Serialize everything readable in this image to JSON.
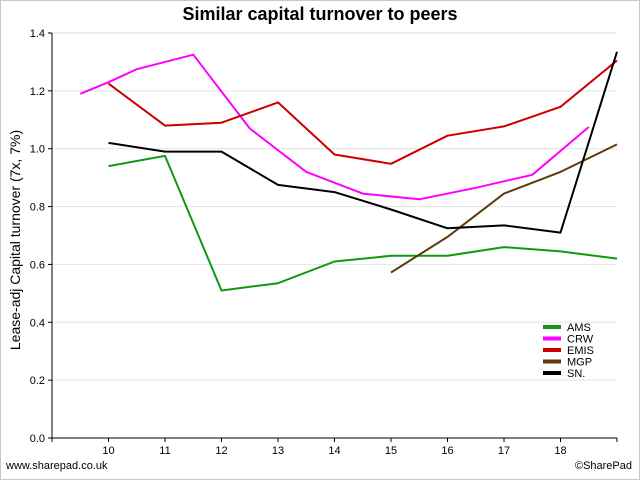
{
  "chart_data": {
    "type": "line",
    "title": "Similar capital turnover to peers",
    "ylabel": "Lease-adj Capital turnover (7x, 7%)",
    "xlabel": "",
    "ylim": [
      0,
      1.4
    ],
    "xlim": [
      9,
      19
    ],
    "y_ticks": [
      "0.0",
      "0.2",
      "0.4",
      "0.6",
      "0.8",
      "1.0",
      "1.2",
      "1.4"
    ],
    "x_ticks": [
      "10",
      "11",
      "12",
      "13",
      "14",
      "15",
      "16",
      "17",
      "18"
    ],
    "grid": "horizontal",
    "legend_position": "bottom-right",
    "series": [
      {
        "name": "AMS",
        "color": "#109910",
        "x": [
          10,
          11,
          12,
          13,
          14,
          15,
          16,
          17,
          18,
          19
        ],
        "y": [
          0.94,
          0.975,
          0.51,
          0.535,
          0.61,
          0.63,
          0.63,
          0.66,
          0.645,
          0.62
        ]
      },
      {
        "name": "CRW",
        "color": "#ff00ff",
        "x": [
          9.5,
          10,
          10.5,
          11.5,
          12.5,
          13.5,
          14.5,
          15.5,
          16.5,
          17.5,
          18.5
        ],
        "y": [
          1.19,
          1.23,
          1.275,
          1.325,
          1.07,
          0.92,
          0.845,
          0.825,
          0.865,
          0.91,
          1.075
        ]
      },
      {
        "name": "EMIS",
        "color": "#cc0000",
        "x": [
          10,
          11,
          12,
          13,
          14,
          15,
          16,
          17,
          18,
          19
        ],
        "y": [
          1.225,
          1.08,
          1.09,
          1.16,
          0.98,
          0.948,
          1.045,
          1.077,
          1.145,
          1.305
        ]
      },
      {
        "name": "MGP",
        "color": "#5e3a0e",
        "x": [
          15,
          16,
          17,
          18,
          19
        ],
        "y": [
          0.572,
          0.695,
          0.845,
          0.92,
          1.015
        ]
      },
      {
        "name": "SN.",
        "color": "#000000",
        "x": [
          10,
          11,
          12,
          13,
          14,
          15,
          16,
          17,
          18,
          19
        ],
        "y": [
          1.02,
          0.99,
          0.99,
          0.875,
          0.85,
          0.79,
          0.725,
          0.735,
          0.71,
          1.335
        ]
      }
    ]
  },
  "footer": {
    "source": "www.sharepad.co.uk",
    "copyright": "©SharePad"
  }
}
